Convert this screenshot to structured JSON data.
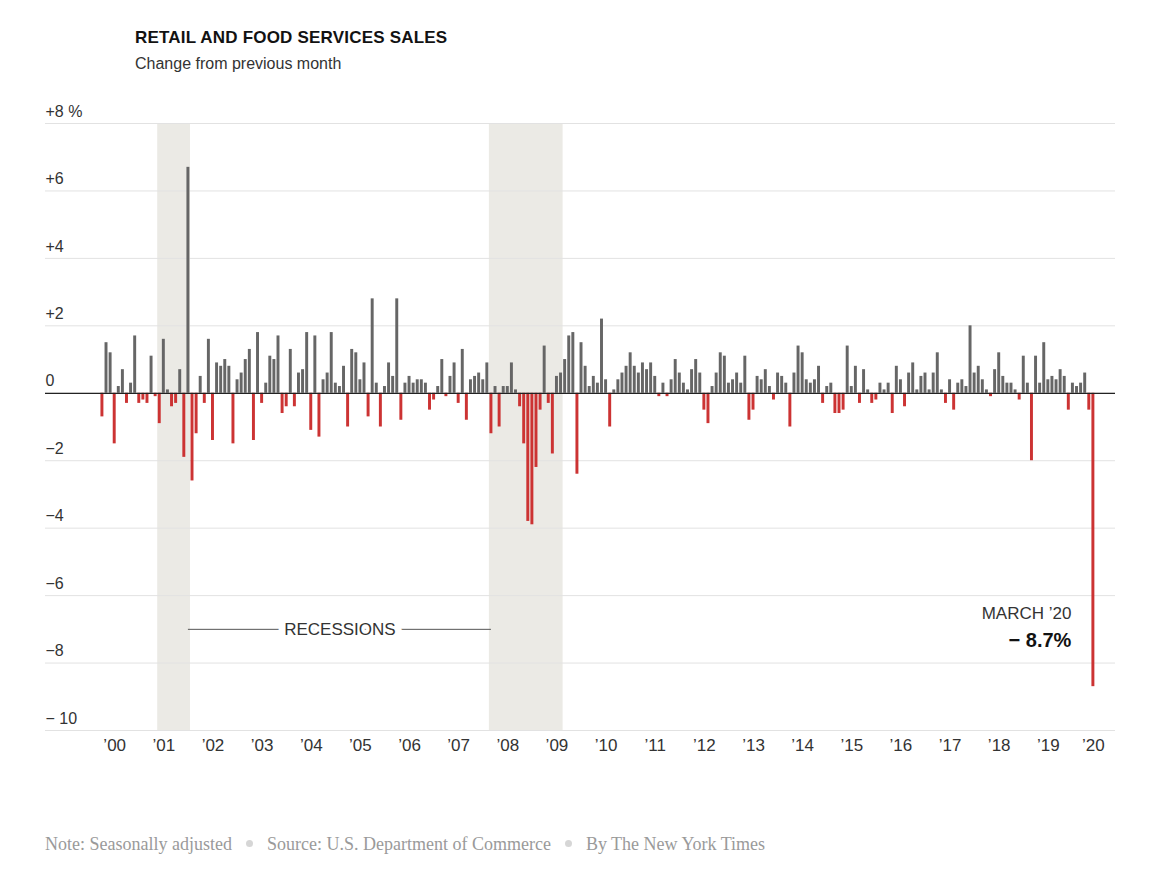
{
  "chart_data": {
    "type": "bar",
    "title": "RETAIL AND FOOD SERVICES SALES",
    "subtitle": "Change from previous month",
    "notes": [
      "Note: Seasonally adjusted",
      "Source: U.S. Department of Commerce",
      "By The New York Times"
    ],
    "categories": [
      null,
      null,
      null,
      "’00",
      null,
      null,
      null,
      null,
      null,
      null,
      null,
      null,
      null,
      null,
      null,
      "’01",
      null,
      null,
      null,
      null,
      null,
      null,
      null,
      null,
      null,
      null,
      null,
      "’02",
      null,
      null,
      null,
      null,
      null,
      null,
      null,
      null,
      null,
      null,
      null,
      "’03",
      null,
      null,
      null,
      null,
      null,
      null,
      null,
      null,
      null,
      null,
      null,
      "’04",
      null,
      null,
      null,
      null,
      null,
      null,
      null,
      null,
      null,
      null,
      null,
      "’05",
      null,
      null,
      null,
      null,
      null,
      null,
      null,
      null,
      null,
      null,
      null,
      "’06",
      null,
      null,
      null,
      null,
      null,
      null,
      null,
      null,
      null,
      null,
      null,
      "’07",
      null,
      null,
      null,
      null,
      null,
      null,
      null,
      null,
      null,
      null,
      null,
      "’08",
      null,
      null,
      null,
      null,
      null,
      null,
      null,
      null,
      null,
      null,
      null,
      "’09",
      null,
      null,
      null,
      null,
      null,
      null,
      null,
      null,
      null,
      null,
      null,
      "’10",
      null,
      null,
      null,
      null,
      null,
      null,
      null,
      null,
      null,
      null,
      null,
      "’11",
      null,
      null,
      null,
      null,
      null,
      null,
      null,
      null,
      null,
      null,
      null,
      "’12",
      null,
      null,
      null,
      null,
      null,
      null,
      null,
      null,
      null,
      null,
      null,
      "’13",
      null,
      null,
      null,
      null,
      null,
      null,
      null,
      null,
      null,
      null,
      null,
      "’14",
      null,
      null,
      null,
      null,
      null,
      null,
      null,
      null,
      null,
      null,
      null,
      "’15",
      null,
      null,
      null,
      null,
      null,
      null,
      null,
      null,
      null,
      null,
      null,
      "’16",
      null,
      null,
      null,
      null,
      null,
      null,
      null,
      null,
      null,
      null,
      null,
      "’17",
      null,
      null,
      null,
      null,
      null,
      null,
      null,
      null,
      null,
      null,
      null,
      "’18",
      null,
      null,
      null,
      null,
      null,
      null,
      null,
      null,
      null,
      null,
      null,
      "’19",
      null,
      null,
      null,
      null,
      null,
      null,
      null,
      null,
      null,
      null,
      "’20"
    ],
    "values": [
      -0.7,
      1.5,
      1.2,
      -1.5,
      0.2,
      0.7,
      -0.3,
      0.3,
      1.7,
      -0.3,
      -0.2,
      -0.3,
      1.1,
      -0.1,
      -0.9,
      1.6,
      0.1,
      -0.4,
      -0.3,
      0.7,
      -1.9,
      6.7,
      -2.6,
      -1.2,
      0.5,
      -0.3,
      1.6,
      -1.4,
      0.9,
      0.8,
      1.0,
      0.8,
      -1.5,
      0.4,
      0.6,
      1.0,
      1.3,
      -1.4,
      1.8,
      -0.3,
      0.3,
      1.1,
      1.0,
      1.7,
      -0.6,
      -0.4,
      1.3,
      -0.4,
      0.6,
      0.7,
      1.8,
      -1.1,
      1.7,
      -1.3,
      0.4,
      0.6,
      1.8,
      0.3,
      0.2,
      0.8,
      -1.0,
      1.3,
      1.2,
      0.4,
      0.9,
      -0.7,
      2.8,
      0.3,
      -1.0,
      0.2,
      0.9,
      0.5,
      2.8,
      -0.8,
      0.3,
      0.5,
      0.3,
      0.4,
      0.4,
      0.3,
      -0.5,
      -0.2,
      0.2,
      1.0,
      -0.1,
      0.5,
      0.9,
      -0.3,
      1.3,
      -0.8,
      0.4,
      0.5,
      0.6,
      0.4,
      0.9,
      -1.2,
      0.2,
      -1.0,
      0.2,
      0.2,
      0.9,
      0.1,
      -0.4,
      -1.5,
      -3.8,
      -3.9,
      -2.2,
      -0.5,
      1.4,
      -0.3,
      -1.8,
      0.5,
      0.6,
      1.0,
      1.7,
      1.8,
      -2.4,
      1.5,
      0.8,
      0.2,
      0.5,
      0.3,
      2.2,
      0.4,
      -1.0,
      0.1,
      0.4,
      0.6,
      0.8,
      1.2,
      0.8,
      0.6,
      0.9,
      0.7,
      0.9,
      0.5,
      -0.1,
      0.3,
      -0.1,
      0.4,
      1.0,
      0.6,
      0.3,
      0.1,
      0.7,
      1.0,
      0.6,
      -0.5,
      -0.9,
      0.2,
      0.6,
      1.2,
      1.1,
      0.3,
      0.4,
      0.6,
      0.3,
      1.1,
      -0.8,
      -0.5,
      0.5,
      0.4,
      0.7,
      0.2,
      -0.2,
      0.6,
      0.5,
      0.3,
      -1.0,
      0.6,
      1.4,
      1.2,
      0.4,
      0.3,
      0.4,
      0.8,
      -0.3,
      0.2,
      0.3,
      -0.6,
      -0.6,
      -0.5,
      1.4,
      0.2,
      0.8,
      -0.3,
      0.7,
      0.1,
      -0.3,
      -0.2,
      0.3,
      0.1,
      0.3,
      -0.6,
      0.8,
      0.4,
      -0.4,
      0.6,
      0.9,
      0.1,
      0.5,
      0.6,
      0.1,
      0.6,
      1.2,
      0.1,
      -0.3,
      0.4,
      -0.5,
      0.3,
      0.4,
      0.2,
      2.0,
      0.6,
      0.8,
      0.4,
      0.1,
      -0.1,
      0.7,
      1.2,
      0.5,
      0.3,
      0.3,
      0.1,
      -0.2,
      1.1,
      0.3,
      -2.0,
      1.1,
      0.3,
      1.5,
      0.4,
      0.5,
      0.4,
      0.7,
      0.5,
      -0.5,
      0.3,
      0.2,
      0.3,
      0.6,
      -0.5,
      -8.7
    ],
    "colors": [
      "#c33",
      "#666",
      "#666",
      "#c33",
      "#666",
      "#666",
      "#c33",
      "#666",
      "#666",
      "#c33",
      "#c33",
      "#c33",
      "#666",
      "#c33",
      "#c33",
      "#666",
      "#666",
      "#c33",
      "#c33",
      "#666",
      "#c33",
      "#666",
      "#c33",
      "#c33",
      "#666",
      "#c33",
      "#666",
      "#c33",
      "#666",
      "#666",
      "#666",
      "#666",
      "#c33",
      "#666",
      "#666",
      "#666",
      "#666",
      "#c33",
      "#666",
      "#c33",
      "#666",
      "#666",
      "#666",
      "#666",
      "#c33",
      "#c33",
      "#666",
      "#c33",
      "#666",
      "#666",
      "#666",
      "#c33",
      "#666",
      "#c33",
      "#666",
      "#666",
      "#666",
      "#666",
      "#666",
      "#666",
      "#c33",
      "#666",
      "#666",
      "#666",
      "#666",
      "#c33",
      "#666",
      "#666",
      "#c33",
      "#666",
      "#666",
      "#666",
      "#666",
      "#c33",
      "#666",
      "#666",
      "#666",
      "#666",
      "#666",
      "#666",
      "#c33",
      "#c33",
      "#666",
      "#666",
      "#c33",
      "#666",
      "#666",
      "#c33",
      "#666",
      "#c33",
      "#666",
      "#666",
      "#666",
      "#666",
      "#666",
      "#c33",
      "#666",
      "#c33",
      "#666",
      "#666",
      "#666",
      "#666",
      "#c33",
      "#c33",
      "#c33",
      "#c33",
      "#c33",
      "#c33",
      "#666",
      "#c33",
      "#c33",
      "#666",
      "#666",
      "#666",
      "#666",
      "#666",
      "#c33",
      "#666",
      "#666",
      "#666",
      "#666",
      "#666",
      "#666",
      "#666",
      "#c33",
      "#666",
      "#666",
      "#666",
      "#666",
      "#666",
      "#666",
      "#666",
      "#666",
      "#666",
      "#666",
      "#666",
      "#c33",
      "#666",
      "#c33",
      "#666",
      "#666",
      "#666",
      "#666",
      "#666",
      "#666",
      "#666",
      "#666",
      "#c33",
      "#c33",
      "#666",
      "#666",
      "#666",
      "#666",
      "#666",
      "#666",
      "#666",
      "#666",
      "#666",
      "#c33",
      "#c33",
      "#666",
      "#666",
      "#666",
      "#666",
      "#c33",
      "#666",
      "#666",
      "#666",
      "#c33",
      "#666",
      "#666",
      "#666",
      "#666",
      "#666",
      "#666",
      "#666",
      "#c33",
      "#666",
      "#666",
      "#c33",
      "#c33",
      "#c33",
      "#666",
      "#666",
      "#666",
      "#c33",
      "#666",
      "#666",
      "#c33",
      "#c33",
      "#666",
      "#666",
      "#666",
      "#c33",
      "#666",
      "#666",
      "#c33",
      "#666",
      "#666",
      "#666",
      "#666",
      "#666",
      "#666",
      "#666",
      "#666",
      "#666",
      "#c33",
      "#666",
      "#c33",
      "#666",
      "#666",
      "#666",
      "#666",
      "#666",
      "#666",
      "#666",
      "#666",
      "#c33",
      "#666",
      "#666",
      "#666",
      "#666",
      "#666",
      "#666",
      "#c33",
      "#666",
      "#666",
      "#c33",
      "#666",
      "#666",
      "#666",
      "#666",
      "#666",
      "#666",
      "#666",
      "#666",
      "#c33",
      "#666",
      "#666",
      "#666",
      "#666",
      "#c33",
      "#c33"
    ],
    "ylim": [
      -10,
      8
    ],
    "yticks": [
      {
        "value": 8,
        "label": "+8 %"
      },
      {
        "value": 6,
        "label": "+6"
      },
      {
        "value": 4,
        "label": "+4"
      },
      {
        "value": 2,
        "label": "+2"
      },
      0,
      {
        "value": -2,
        "label": "−2"
      },
      {
        "value": -4,
        "label": "−4"
      },
      {
        "value": -6,
        "label": "−6"
      },
      {
        "value": -8,
        "label": "−8"
      },
      {
        "value": -10,
        "label": "− 10"
      }
    ],
    "grid": true,
    "recessions": {
      "label": "RECESSIONS",
      "ranges": [
        [
          14,
          21
        ],
        [
          95,
          112
        ]
      ]
    },
    "annotation": {
      "title": "MARCH ’20",
      "label": "− 8.7%",
      "value": -8.7
    }
  }
}
